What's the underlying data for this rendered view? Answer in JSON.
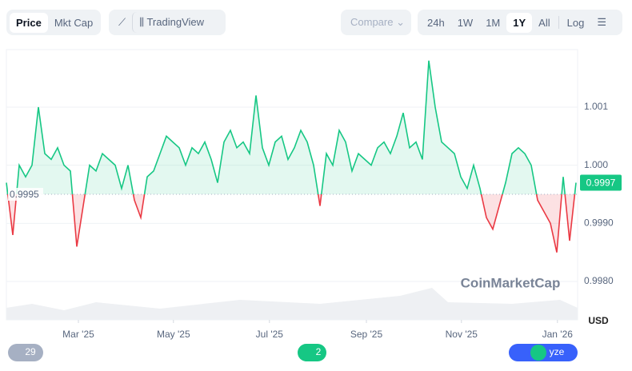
{
  "toolbar": {
    "price": "Price",
    "mkt_cap": "Mkt Cap",
    "tradingview": "TradingView",
    "compare": "Compare",
    "ranges": [
      "24h",
      "1W",
      "1M",
      "1Y",
      "All"
    ],
    "log": "Log"
  },
  "chart_data": {
    "type": "line",
    "watermark": "CoinMarketCap",
    "currency": "USD",
    "baseline": 0.9995,
    "current_price": 0.9997,
    "up_color": "#16c784",
    "down_color": "#ea3943",
    "x": [
      0,
      1,
      2,
      3,
      4,
      5,
      6,
      7,
      8,
      9,
      10,
      11,
      12,
      13,
      14,
      15,
      16,
      17,
      18,
      19,
      20,
      21,
      22,
      23,
      24,
      25,
      26,
      27,
      28,
      29,
      30,
      31,
      32,
      33,
      34,
      35,
      36,
      37,
      38,
      39,
      40,
      41,
      42,
      43,
      44,
      45,
      46,
      47,
      48,
      49,
      50,
      51,
      52,
      53,
      54,
      55,
      56,
      57,
      58,
      59,
      60,
      61,
      62,
      63,
      64,
      65,
      66,
      67,
      68,
      69,
      70,
      71,
      72,
      73,
      74,
      75,
      76,
      77,
      78,
      79,
      80,
      81,
      82,
      83,
      84,
      85,
      86,
      87,
      88,
      89
    ],
    "values": [
      0.9997,
      0.9988,
      1.0,
      0.9998,
      1.0,
      1.001,
      1.0002,
      1.0001,
      1.0003,
      1.0,
      0.9999,
      0.9986,
      0.9993,
      1.0,
      0.9999,
      1.0002,
      1.0001,
      1.0,
      0.9996,
      1.0,
      0.9994,
      0.9991,
      0.9998,
      0.9999,
      1.0002,
      1.0005,
      1.0004,
      1.0003,
      1.0,
      1.0003,
      1.0002,
      1.0004,
      1.0001,
      0.9997,
      1.0004,
      1.0006,
      1.0003,
      1.0004,
      1.0002,
      1.0012,
      1.0003,
      1.0,
      1.0004,
      1.0005,
      1.0001,
      1.0003,
      1.0006,
      1.0004,
      1.0,
      0.9993,
      1.0002,
      1.0,
      1.0006,
      1.0004,
      0.9999,
      1.0002,
      1.0001,
      1.0,
      1.0003,
      1.0004,
      1.0002,
      1.0005,
      1.0009,
      1.0003,
      1.0004,
      1.0001,
      1.0018,
      1.001,
      1.0004,
      1.0003,
      1.0002,
      0.9998,
      0.9996,
      1.0,
      0.9996,
      0.9991,
      0.9989,
      0.9993,
      0.9997,
      1.0002,
      1.0003,
      1.0002,
      1.0,
      0.9994,
      0.9992,
      0.999,
      0.9985,
      0.9998,
      0.9987,
      0.9997
    ],
    "xlim": [
      0,
      89.25
    ],
    "xticks": [
      {
        "value": 11.25,
        "label": "Mar '25"
      },
      {
        "value": 26.1,
        "label": "May '25"
      },
      {
        "value": 41.1,
        "label": "Jul '25"
      },
      {
        "value": 56.25,
        "label": "Sep '25"
      },
      {
        "value": 71.1,
        "label": "Nov '25"
      },
      {
        "value": 86.1,
        "label": "Jan '26"
      }
    ],
    "ylim": [
      0.99734,
      1.00199
    ],
    "yticks": [
      {
        "value": 0.998,
        "label": "0.9980"
      },
      {
        "value": 0.999,
        "label": "0.9990"
      },
      {
        "value": 1,
        "label": "1.000"
      },
      1.001
    ]
  },
  "footer": {
    "history_count": "29",
    "notes_count": "2",
    "analyze": "yze"
  }
}
